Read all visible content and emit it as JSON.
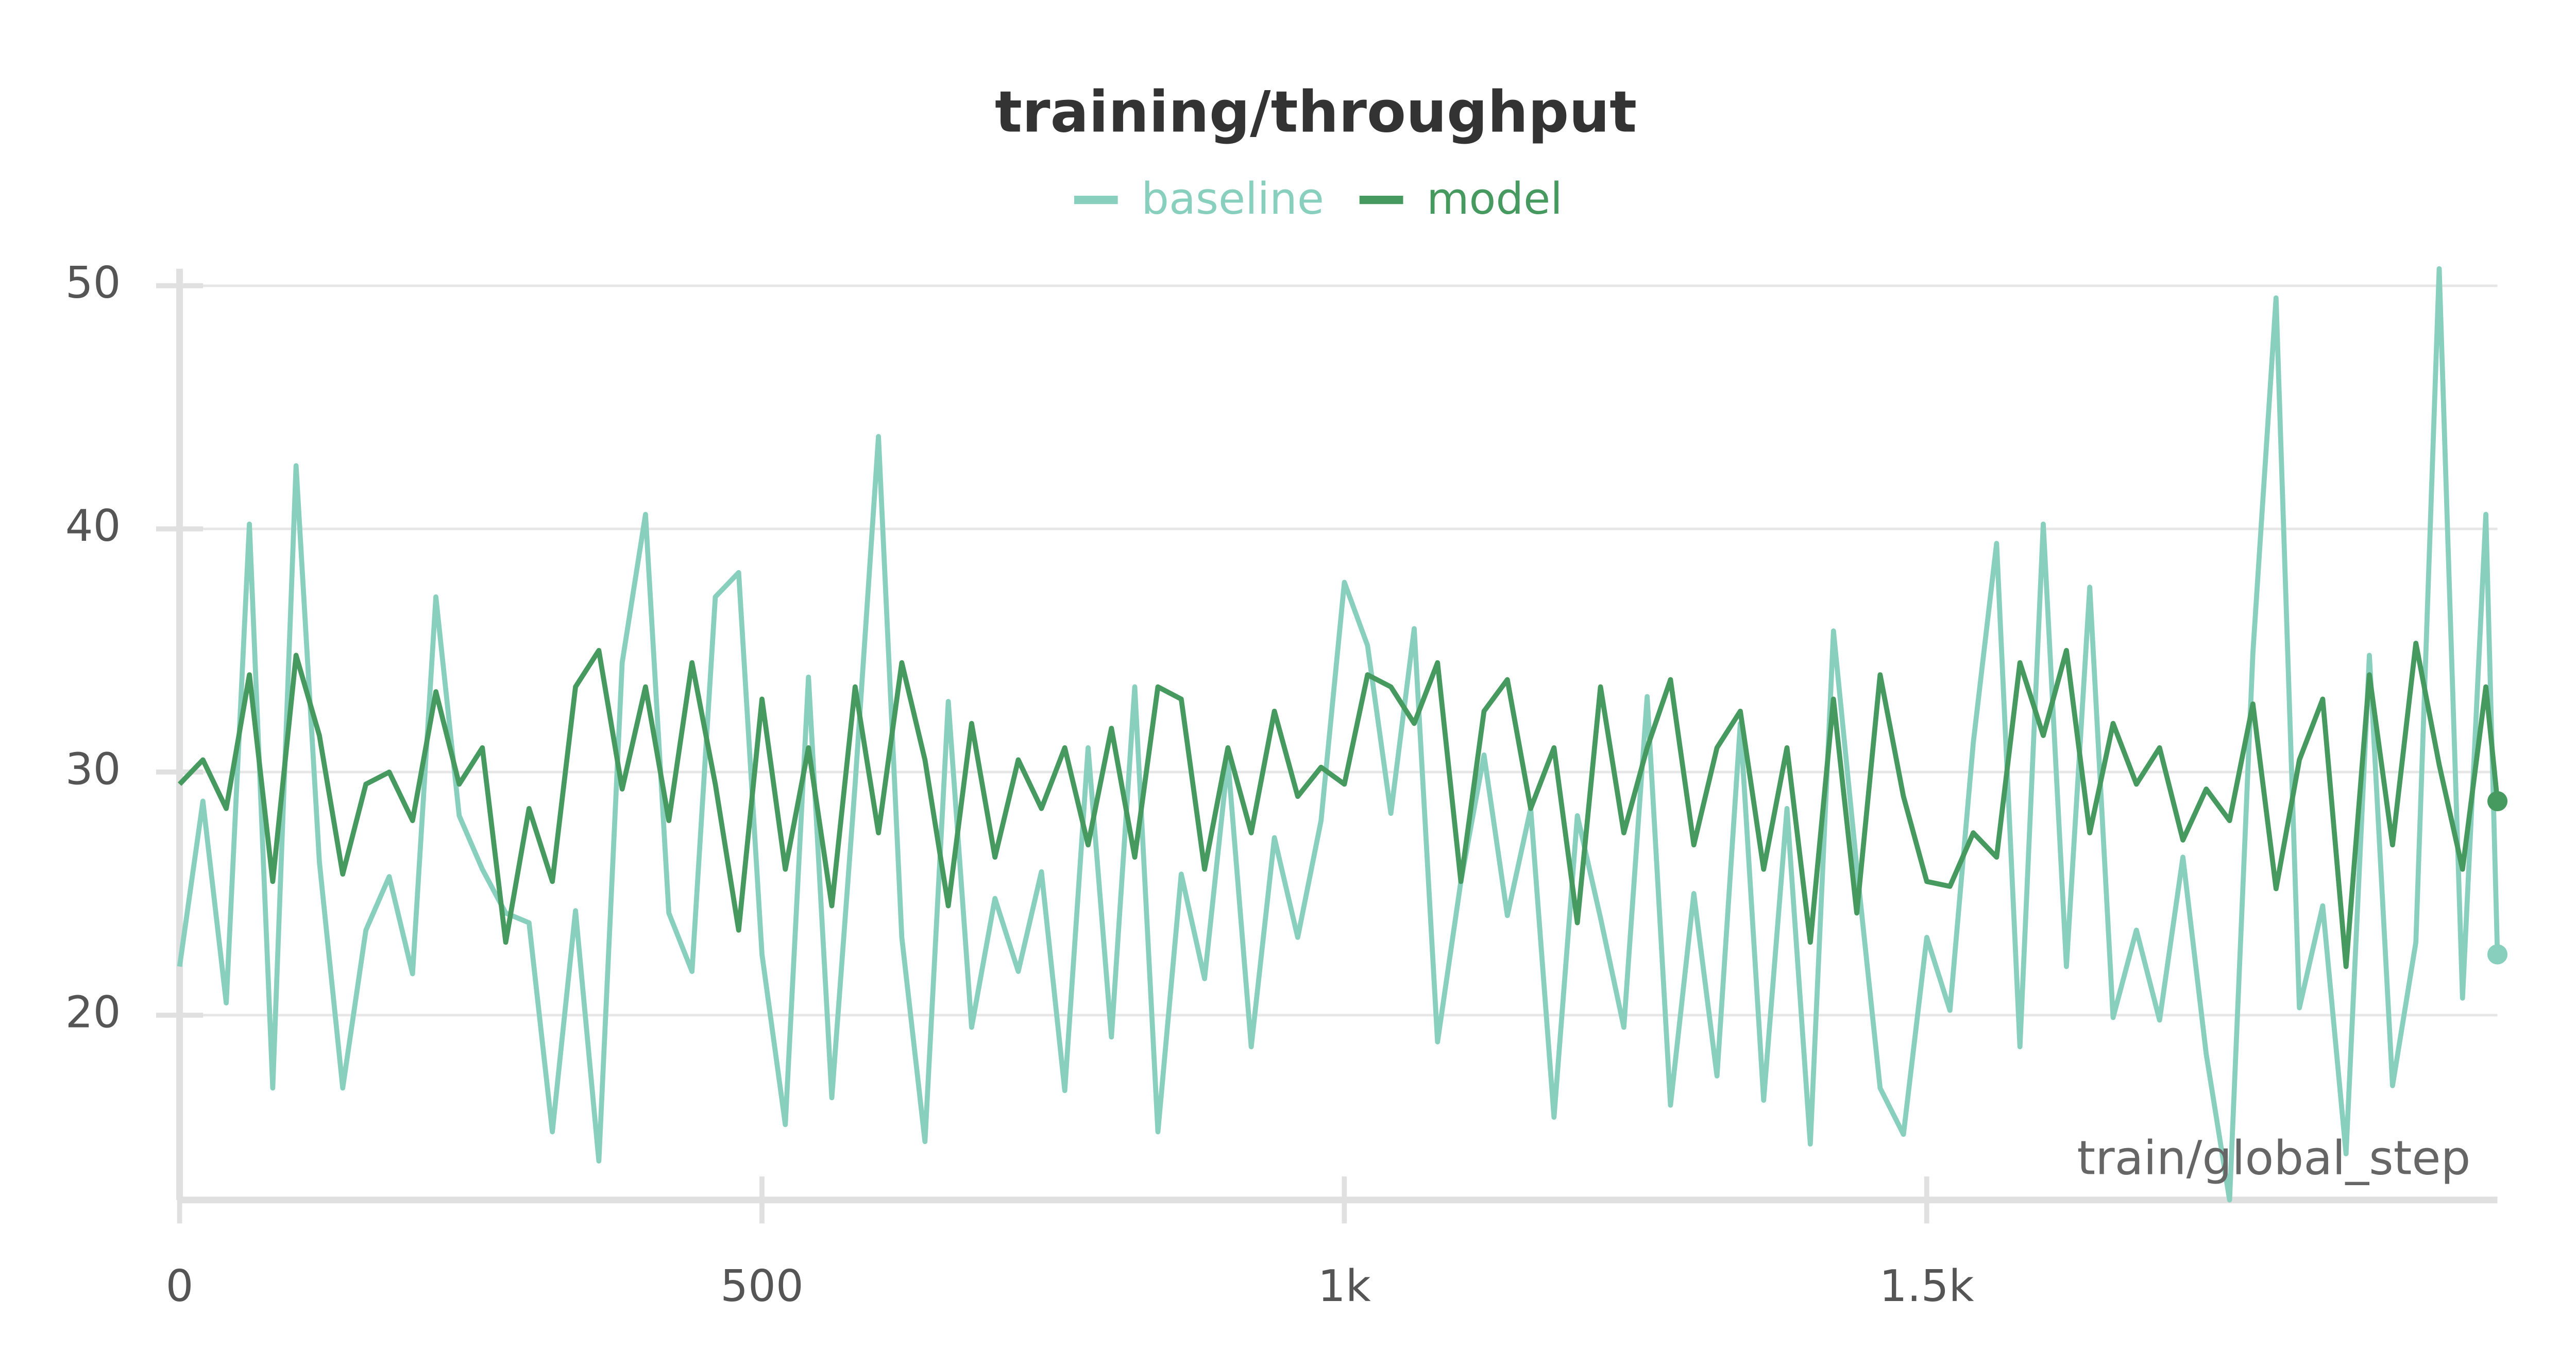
{
  "chart_data": {
    "type": "line",
    "title": "training/throughput",
    "x_label": "train/global_step",
    "x": [
      0,
      20,
      40,
      60,
      80,
      100,
      120,
      140,
      160,
      180,
      200,
      220,
      240,
      260,
      280,
      300,
      320,
      340,
      360,
      380,
      400,
      420,
      440,
      460,
      480,
      500,
      520,
      540,
      560,
      580,
      600,
      620,
      640,
      660,
      680,
      700,
      720,
      740,
      760,
      780,
      800,
      820,
      840,
      860,
      880,
      900,
      920,
      940,
      960,
      980,
      1000,
      1020,
      1040,
      1060,
      1080,
      1100,
      1120,
      1140,
      1160,
      1180,
      1200,
      1220,
      1240,
      1260,
      1280,
      1300,
      1320,
      1340,
      1360,
      1380,
      1400,
      1420,
      1440,
      1460,
      1480,
      1500,
      1520,
      1540,
      1560,
      1580,
      1600,
      1620,
      1640,
      1660,
      1680,
      1700,
      1720,
      1740,
      1760,
      1780,
      1800,
      1820,
      1840,
      1860,
      1880,
      1900,
      1920,
      1940,
      1960,
      1980,
      1990
    ],
    "series": [
      {
        "name": "baseline",
        "color": "#88cfbd",
        "values": [
          22,
          28.8,
          20.5,
          40.2,
          17,
          42.6,
          26.3,
          17,
          23.5,
          25.7,
          21.7,
          37.2,
          28.2,
          26,
          24.2,
          23.8,
          15.2,
          24.3,
          14,
          34.5,
          40.6,
          24.2,
          21.8,
          37.2,
          38.2,
          22.5,
          15.5,
          33.9,
          16.6,
          29.5,
          43.8,
          23.2,
          14.8,
          32.9,
          19.5,
          24.8,
          21.8,
          25.9,
          16.9,
          31,
          19.1,
          33.5,
          15.2,
          25.8,
          21.5,
          30.5,
          18.7,
          27.3,
          23.2,
          28,
          37.8,
          35.2,
          28.3,
          35.9,
          18.9,
          25.5,
          30.7,
          24.1,
          28.5,
          15.8,
          28.2,
          24,
          19.5,
          33.1,
          16.3,
          25,
          17.5,
          32,
          16.5,
          28.5,
          14.7,
          35.8,
          26.1,
          17,
          15.1,
          23.2,
          20.2,
          31.2,
          39.4,
          18.7,
          40.2,
          22,
          37.6,
          19.9,
          23.5,
          19.8,
          26.5,
          18.4,
          12.4,
          34.9,
          49.5,
          20.3,
          24.5,
          14.3,
          34.8,
          17.1,
          23,
          50.7,
          20.7,
          40.6,
          22.5
        ]
      },
      {
        "name": "model",
        "color": "#479a5f",
        "values": [
          29.5,
          30.5,
          28.5,
          34,
          25.5,
          34.8,
          31.5,
          25.8,
          29.5,
          30,
          28,
          33.3,
          29.5,
          31,
          23,
          28.5,
          25.5,
          33.5,
          35,
          29.3,
          33.5,
          28,
          34.5,
          29.5,
          23.5,
          33,
          26,
          31,
          24.5,
          33.5,
          27.5,
          34.5,
          30.5,
          24.5,
          32,
          26.5,
          30.5,
          28.5,
          31,
          27,
          31.8,
          26.5,
          33.5,
          33,
          26,
          31,
          27.5,
          32.5,
          29,
          30.2,
          29.5,
          34,
          33.5,
          32,
          34.5,
          25.5,
          32.5,
          33.8,
          28.5,
          31,
          23.8,
          33.5,
          27.5,
          31,
          33.8,
          27,
          31,
          32.5,
          26,
          31,
          23,
          33,
          24.2,
          34,
          29,
          25.5,
          25.3,
          27.5,
          26.5,
          34.5,
          31.5,
          35,
          27.5,
          32,
          29.5,
          31,
          27.2,
          29.3,
          28,
          32.8,
          25.2,
          30.5,
          33,
          22,
          34,
          27,
          35.3,
          30.3,
          26,
          33.5,
          28.8
        ]
      }
    ],
    "xlim": [
      0,
      1990
    ],
    "ylim": [
      12.4,
      50.7
    ],
    "xticks": [
      0,
      500,
      {
        "value": 1000,
        "label": "1k"
      },
      {
        "value": 1500,
        "label": "1.5k"
      }
    ],
    "yticks": [
      20,
      30,
      40,
      50
    ],
    "grid": true
  }
}
